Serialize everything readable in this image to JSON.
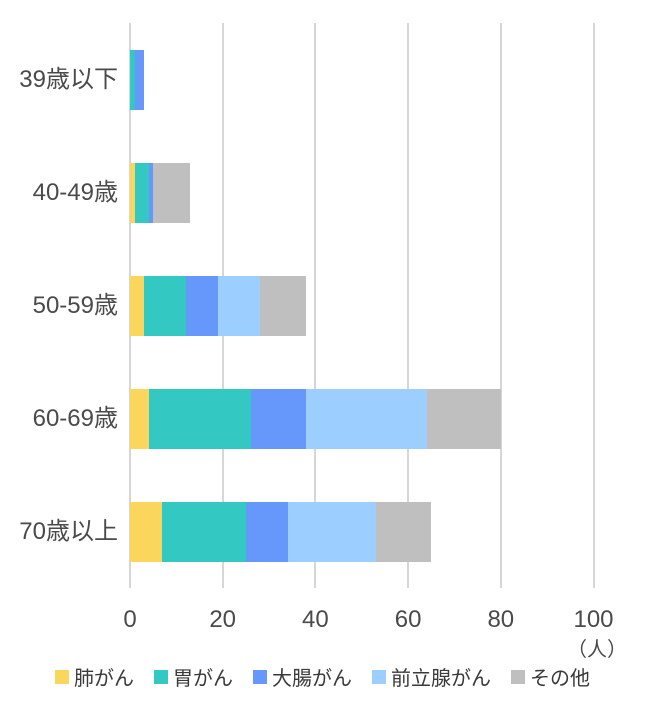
{
  "colors": {
    "background": "#ffffff",
    "grid": "#d6d6d6",
    "axis_text": "#4a4a4a",
    "legend_text": "#3a3a3a"
  },
  "chart_data": {
    "type": "bar",
    "orientation": "horizontal",
    "stacked": true,
    "title": "",
    "categories": [
      "39歳以下",
      "40-49歳",
      "50-59歳",
      "60-69歳",
      "70歳以上"
    ],
    "series": [
      {
        "name": "肺がん",
        "color": "#fbd65d",
        "values": [
          0,
          1,
          3,
          4,
          7
        ]
      },
      {
        "name": "胃がん",
        "color": "#34c8c3",
        "values": [
          1,
          3,
          9,
          22,
          18
        ]
      },
      {
        "name": "大腸がん",
        "color": "#6598fa",
        "values": [
          2,
          1,
          7,
          12,
          9
        ]
      },
      {
        "name": "前立腺がん",
        "color": "#9cceff",
        "values": [
          0,
          0,
          9,
          26,
          19
        ]
      },
      {
        "name": "その他",
        "color": "#bfbfbf",
        "values": [
          0,
          8,
          10,
          16,
          12
        ]
      }
    ],
    "totals": [
      3,
      13,
      38,
      80,
      65
    ],
    "x_ticks": [
      "0",
      "20",
      "40",
      "60",
      "80",
      "100"
    ],
    "xlim": [
      0,
      100
    ],
    "x_unit_label": "（人）",
    "grid": true,
    "legend_position": "bottom"
  }
}
